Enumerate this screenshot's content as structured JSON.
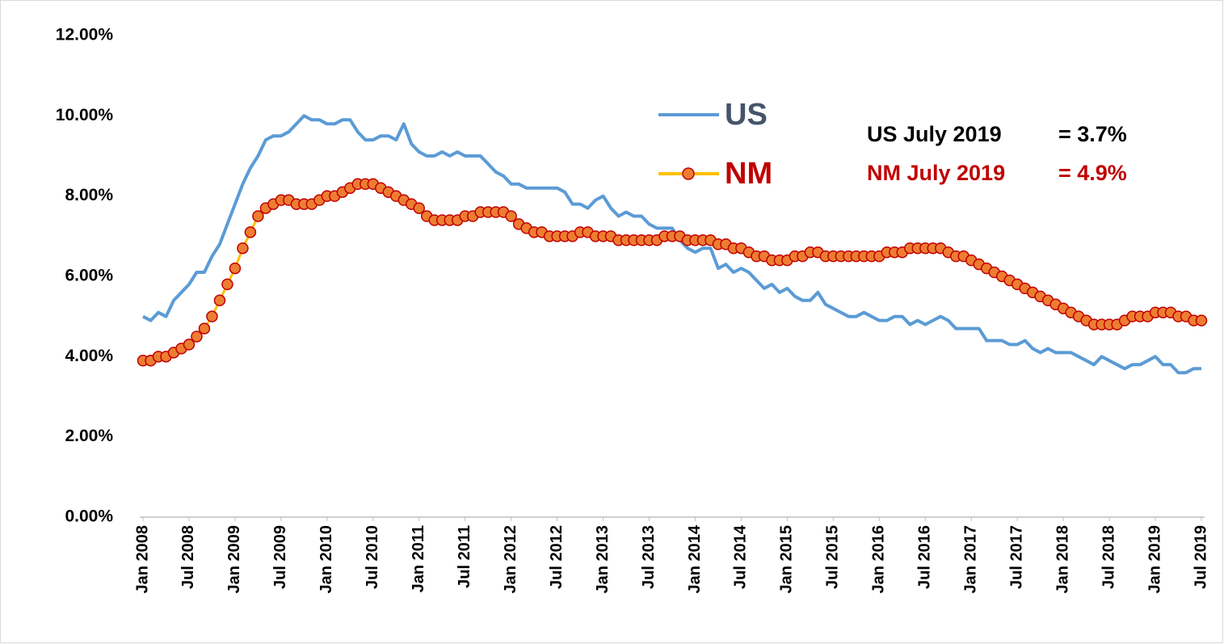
{
  "chart_data": {
    "type": "line",
    "categories": [
      "Jan 2008",
      null,
      null,
      null,
      null,
      null,
      "Jul 2008",
      null,
      null,
      null,
      null,
      null,
      "Jan 2009",
      null,
      null,
      null,
      null,
      null,
      "Jul 2009",
      null,
      null,
      null,
      null,
      null,
      "Jan 2010",
      null,
      null,
      null,
      null,
      null,
      "Jul 2010",
      null,
      null,
      null,
      null,
      null,
      "Jan 2011",
      null,
      null,
      null,
      null,
      null,
      "Jul 2011",
      null,
      null,
      null,
      null,
      null,
      "Jan 2012",
      null,
      null,
      null,
      null,
      null,
      "Jul 2012",
      null,
      null,
      null,
      null,
      null,
      "Jan 2013",
      null,
      null,
      null,
      null,
      null,
      "Jul 2013",
      null,
      null,
      null,
      null,
      null,
      "Jan 2014",
      null,
      null,
      null,
      null,
      null,
      "Jul 2014",
      null,
      null,
      null,
      null,
      null,
      "Jan 2015",
      null,
      null,
      null,
      null,
      null,
      "Jul 2015",
      null,
      null,
      null,
      null,
      null,
      "Jan 2016",
      null,
      null,
      null,
      null,
      null,
      "Jul 2016",
      null,
      null,
      null,
      null,
      null,
      "Jan 2017",
      null,
      null,
      null,
      null,
      null,
      "Jul 2017",
      null,
      null,
      null,
      null,
      null,
      "Jan 2018",
      null,
      null,
      null,
      null,
      null,
      "Jul 2018",
      null,
      null,
      null,
      null,
      null,
      "Jan 2019",
      null,
      null,
      null,
      null,
      null,
      "Jul 2019"
    ],
    "series": [
      {
        "name": "US",
        "color": "#5b9bd5",
        "values": [
          5.0,
          4.9,
          5.1,
          5.0,
          5.4,
          5.6,
          5.8,
          6.1,
          6.1,
          6.5,
          6.8,
          7.3,
          7.8,
          8.3,
          8.7,
          9.0,
          9.4,
          9.5,
          9.5,
          9.6,
          9.8,
          10.0,
          9.9,
          9.9,
          9.8,
          9.8,
          9.9,
          9.9,
          9.6,
          9.4,
          9.4,
          9.5,
          9.5,
          9.4,
          9.8,
          9.3,
          9.1,
          9.0,
          9.0,
          9.1,
          9.0,
          9.1,
          9.0,
          9.0,
          9.0,
          8.8,
          8.6,
          8.5,
          8.3,
          8.3,
          8.2,
          8.2,
          8.2,
          8.2,
          8.2,
          8.1,
          7.8,
          7.8,
          7.7,
          7.9,
          8.0,
          7.7,
          7.5,
          7.6,
          7.5,
          7.5,
          7.3,
          7.2,
          7.2,
          7.2,
          6.9,
          6.7,
          6.6,
          6.7,
          6.7,
          6.2,
          6.3,
          6.1,
          6.2,
          6.1,
          5.9,
          5.7,
          5.8,
          5.6,
          5.7,
          5.5,
          5.4,
          5.4,
          5.6,
          5.3,
          5.2,
          5.1,
          5.0,
          5.0,
          5.1,
          5.0,
          4.9,
          4.9,
          5.0,
          5.0,
          4.8,
          4.9,
          4.8,
          4.9,
          5.0,
          4.9,
          4.7,
          4.7,
          4.7,
          4.7,
          4.4,
          4.4,
          4.4,
          4.3,
          4.3,
          4.4,
          4.2,
          4.1,
          4.2,
          4.1,
          4.1,
          4.1,
          4.0,
          3.9,
          3.8,
          4.0,
          3.9,
          3.8,
          3.7,
          3.8,
          3.8,
          3.9,
          4.0,
          3.8,
          3.8,
          3.6,
          3.6,
          3.7,
          3.7
        ]
      },
      {
        "name": "NM",
        "color": "#ffc000",
        "marker_fill": "#ed7d31",
        "marker_stroke": "#c00000",
        "values": [
          3.9,
          3.9,
          4.0,
          4.0,
          4.1,
          4.2,
          4.3,
          4.5,
          4.7,
          5.0,
          5.4,
          5.8,
          6.2,
          6.7,
          7.1,
          7.5,
          7.7,
          7.8,
          7.9,
          7.9,
          7.8,
          7.8,
          7.8,
          7.9,
          8.0,
          8.0,
          8.1,
          8.2,
          8.3,
          8.3,
          8.3,
          8.2,
          8.1,
          8.0,
          7.9,
          7.8,
          7.7,
          7.5,
          7.4,
          7.4,
          7.4,
          7.4,
          7.5,
          7.5,
          7.6,
          7.6,
          7.6,
          7.6,
          7.5,
          7.3,
          7.2,
          7.1,
          7.1,
          7.0,
          7.0,
          7.0,
          7.0,
          7.1,
          7.1,
          7.0,
          7.0,
          7.0,
          6.9,
          6.9,
          6.9,
          6.9,
          6.9,
          6.9,
          7.0,
          7.0,
          7.0,
          6.9,
          6.9,
          6.9,
          6.9,
          6.8,
          6.8,
          6.7,
          6.7,
          6.6,
          6.5,
          6.5,
          6.4,
          6.4,
          6.4,
          6.5,
          6.5,
          6.6,
          6.6,
          6.5,
          6.5,
          6.5,
          6.5,
          6.5,
          6.5,
          6.5,
          6.5,
          6.6,
          6.6,
          6.6,
          6.7,
          6.7,
          6.7,
          6.7,
          6.7,
          6.6,
          6.5,
          6.5,
          6.4,
          6.3,
          6.2,
          6.1,
          6.0,
          5.9,
          5.8,
          5.7,
          5.6,
          5.5,
          5.4,
          5.3,
          5.2,
          5.1,
          5.0,
          4.9,
          4.8,
          4.8,
          4.8,
          4.8,
          4.9,
          5.0,
          5.0,
          5.0,
          5.1,
          5.1,
          5.1,
          5.0,
          5.0,
          4.9,
          4.9
        ]
      }
    ],
    "legend_colors": [
      "#44546a",
      "#c00000"
    ],
    "ylim": [
      0,
      12
    ],
    "yticks": [
      {
        "value": 0,
        "label": "0.00%"
      },
      {
        "value": 2,
        "label": "2.00%"
      },
      {
        "value": 4,
        "label": "4.00%"
      },
      {
        "value": 6,
        "label": "6.00%"
      },
      {
        "value": 8,
        "label": "8.00%"
      },
      {
        "value": 10,
        "label": "10.00%"
      },
      {
        "value": 12,
        "label": "12.00%"
      }
    ],
    "grid": false,
    "annotations": [
      {
        "label": "US July 2019",
        "value_text": "= 3.7%",
        "color": "#000000"
      },
      {
        "label": "NM July 2019",
        "value_text": "= 4.9%",
        "color": "#c00000"
      }
    ]
  }
}
